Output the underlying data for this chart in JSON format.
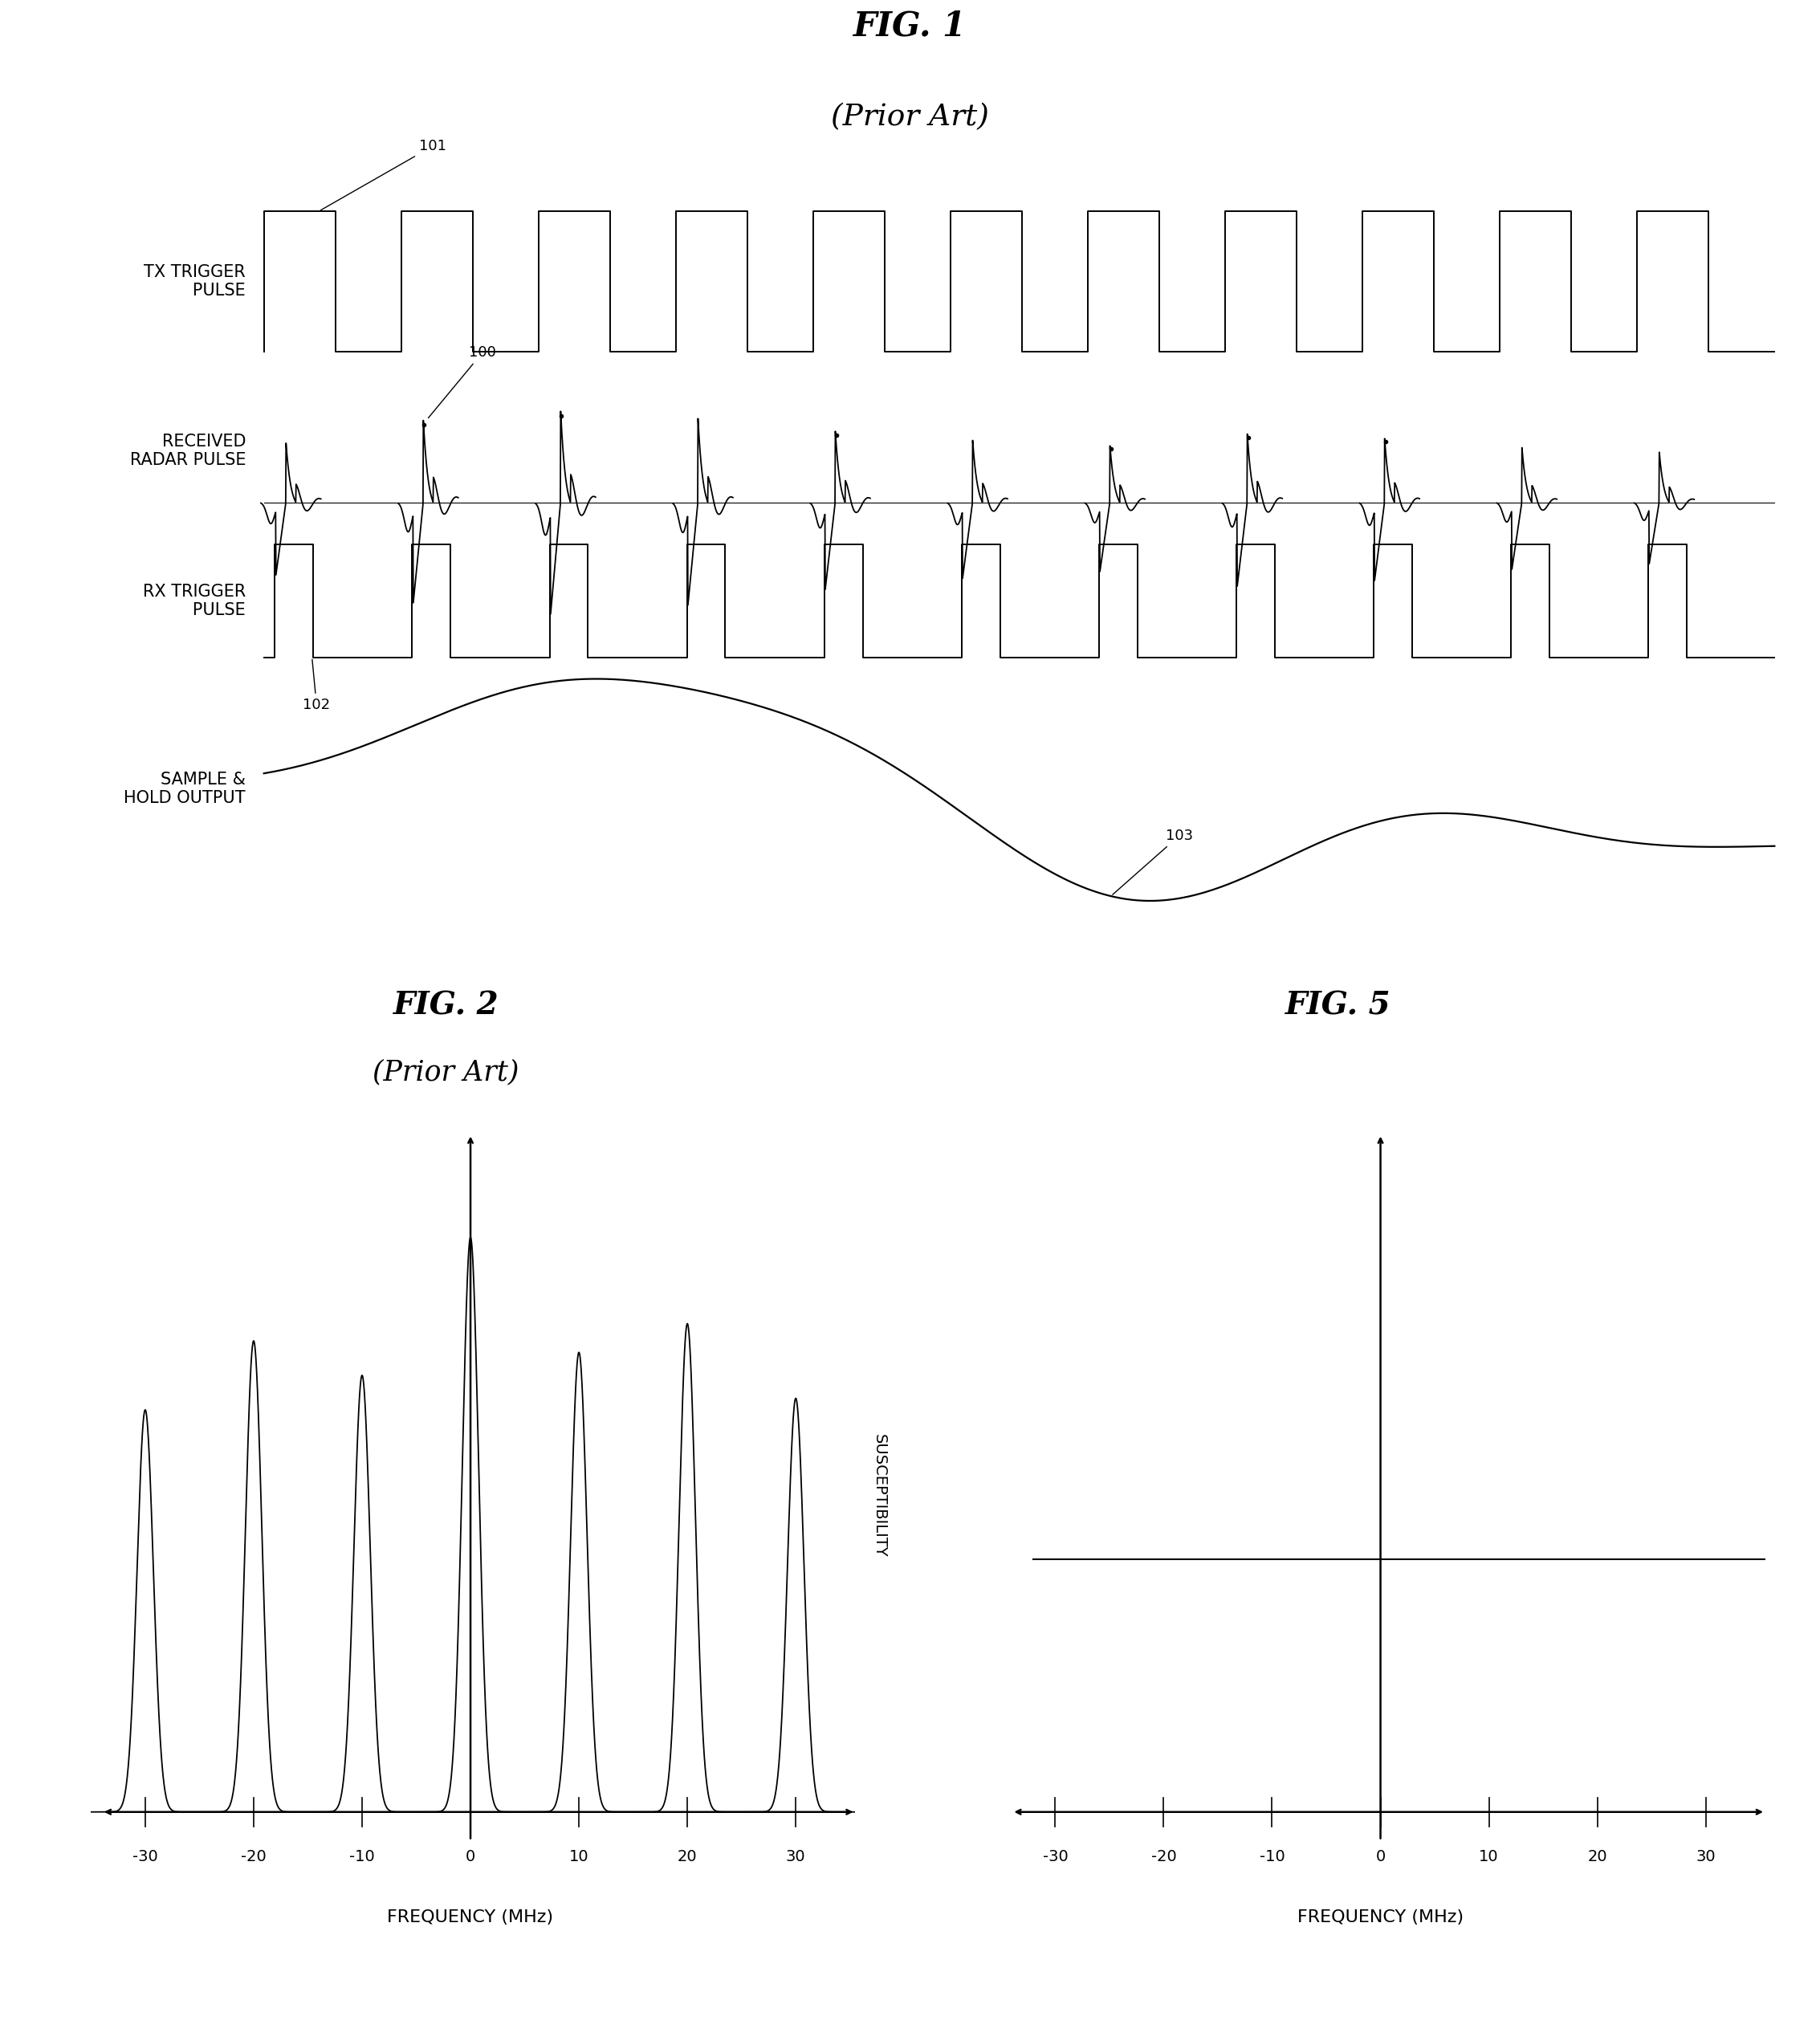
{
  "fig1_title": "FIG. 1",
  "fig1_subtitle": "(Prior Art)",
  "fig2_title": "FIG. 2",
  "fig2_subtitle": "(Prior Art)",
  "fig5_title": "FIG. 5",
  "bg_color": "#ffffff",
  "line_color": "#000000",
  "tx_label_line1": "TX TRIGGER",
  "tx_label_line2": "PULSE",
  "radar_label_line1": "RECEIVED",
  "radar_label_line2": "RADAR PULSE",
  "rx_label_line1": "RX TRIGGER",
  "rx_label_line2": "PULSE",
  "sample_label_line1": "SAMPLE &",
  "sample_label_line2": "HOLD OUTPUT",
  "freq_label": "FREQUENCY (MHz)",
  "susceptibility_label": "SUSCEPTIBILITY",
  "freq_ticks": [
    -30,
    -20,
    -10,
    0,
    10,
    20,
    30
  ],
  "fig_font_size": 24,
  "label_font_size": 15,
  "tick_font_size": 14,
  "annot_font_size": 13
}
